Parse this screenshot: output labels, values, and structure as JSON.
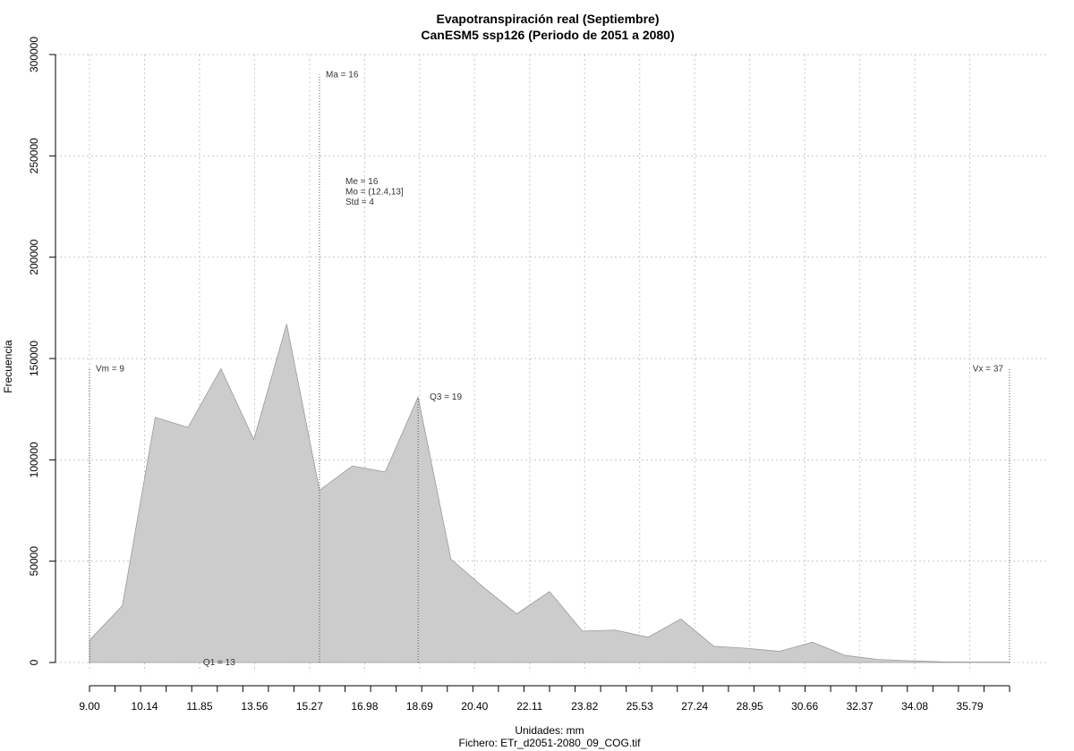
{
  "chart_data": {
    "type": "area",
    "title": "Evapotranspiración real (Septiembre)",
    "subtitle": "CanESM5 ssp126 (Periodo de 2051 a 2080)",
    "xlabel": "Unidades: mm",
    "ylabel": "Frecuencia",
    "caption": "Fichero: ETr_d2051-2080_09_COG.tif",
    "xlim": [
      9.0,
      37.0
    ],
    "ylim": [
      0,
      300000
    ],
    "grid": true,
    "fill_color": "#cccccc",
    "x_tick_labels": [
      "9.00",
      "10.14",
      "11.85",
      "13.56",
      "15.27",
      "16.98",
      "18.69",
      "20.40",
      "22.11",
      "23.82",
      "25.53",
      "27.24",
      "28.95",
      "30.66",
      "32.37",
      "34.08",
      "35.79"
    ],
    "y_ticks": [
      0,
      50000,
      100000,
      150000,
      200000,
      250000,
      300000
    ],
    "y_tick_labels": [
      "0",
      "50000",
      "100000",
      "150000",
      "200000",
      "250000",
      "300000"
    ],
    "x": [
      9.0,
      10.0,
      11.0,
      12.0,
      13.0,
      14.0,
      15.0,
      16.0,
      17.0,
      18.0,
      19.0,
      20.0,
      21.0,
      22.0,
      23.0,
      24.0,
      25.0,
      26.0,
      27.0,
      28.0,
      29.0,
      30.0,
      31.0,
      32.0,
      33.0,
      34.0,
      35.0,
      36.0,
      37.0
    ],
    "y": [
      11000,
      28000,
      121000,
      116000,
      145000,
      110000,
      167000,
      85000,
      97000,
      94000,
      131000,
      51000,
      37000,
      24000,
      35000,
      15500,
      16000,
      12500,
      21500,
      8000,
      7000,
      5500,
      10000,
      3500,
      1500,
      800,
      300,
      200,
      200
    ],
    "annotations": [
      {
        "text": "Ma = 16",
        "x": 16,
        "line": true,
        "line_top": 290000
      },
      {
        "text": "Vm = 9",
        "x": 9,
        "line": true,
        "line_top": 145000
      },
      {
        "text": "Vx = 37",
        "x": 37,
        "line": true,
        "line_top": 145000
      },
      {
        "text": "Q3 = 19",
        "x": 19,
        "line": true,
        "line_top": 131000
      },
      {
        "text": "Q1 = 13",
        "x": 13,
        "line": false
      }
    ],
    "stats": [
      "Me = 16",
      "Mo = (12.4,13]",
      "Std = 4"
    ]
  }
}
